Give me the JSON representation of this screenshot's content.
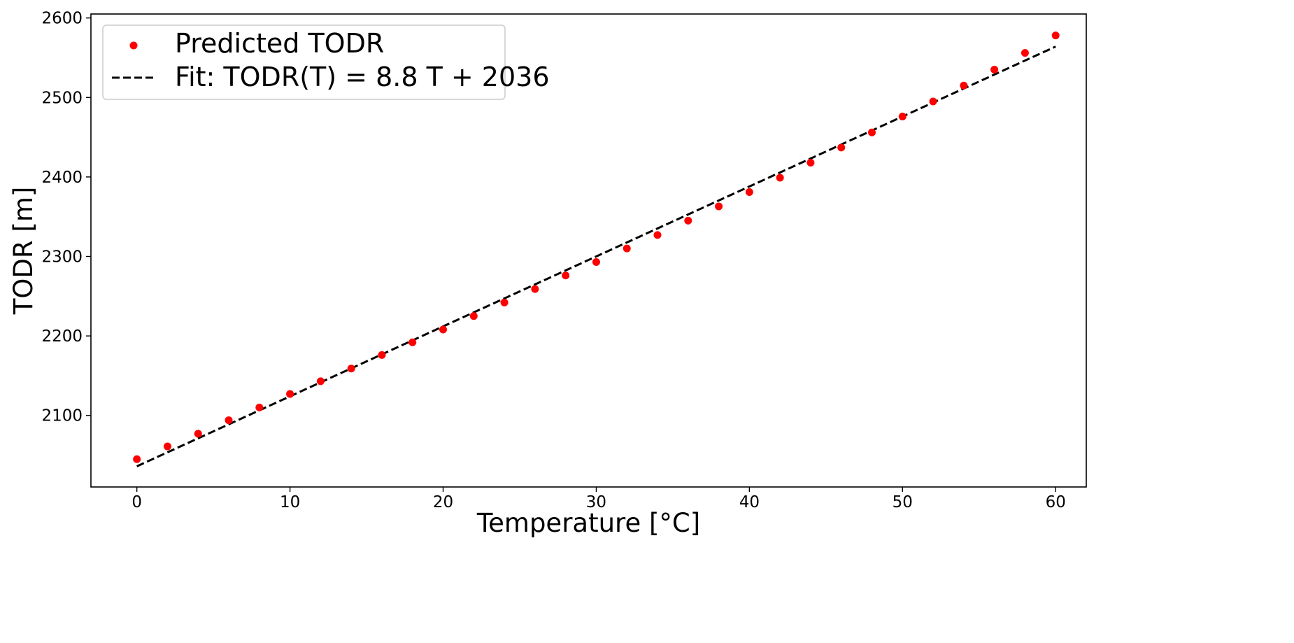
{
  "chart_data": {
    "type": "scatter",
    "xlabel": "Temperature [°C]",
    "ylabel": "TODR [m]",
    "xlim": [
      -3,
      62
    ],
    "ylim": [
      2010,
      2605
    ],
    "xticks": [
      0,
      10,
      20,
      30,
      40,
      50,
      60
    ],
    "yticks": [
      2100,
      2200,
      2300,
      2400,
      2500,
      2600
    ],
    "grid": false,
    "legend_position": "top-left",
    "series": [
      {
        "name": "Predicted TODR",
        "kind": "scatter",
        "color": "#ff0000",
        "x": [
          0,
          2,
          4,
          6,
          8,
          10,
          12,
          14,
          16,
          18,
          20,
          22,
          24,
          26,
          28,
          30,
          32,
          34,
          36,
          38,
          40,
          42,
          44,
          46,
          48,
          50,
          52,
          54,
          56,
          58,
          60
        ],
        "y": [
          2045,
          2061,
          2077,
          2094,
          2110,
          2127,
          2143,
          2159,
          2176,
          2192,
          2208,
          2225,
          2242,
          2259,
          2276,
          2293,
          2310,
          2327,
          2345,
          2363,
          2381,
          2399,
          2418,
          2437,
          2456,
          2476,
          2495,
          2515,
          2535,
          2556,
          2578
        ]
      },
      {
        "name": "Fit: TODR(T) = 8.8 T + 2036",
        "kind": "line",
        "style": "dashed",
        "color": "#000000",
        "slope": 8.8,
        "intercept": 2036,
        "x": [
          0,
          60
        ],
        "y": [
          2036,
          2564
        ]
      }
    ]
  }
}
